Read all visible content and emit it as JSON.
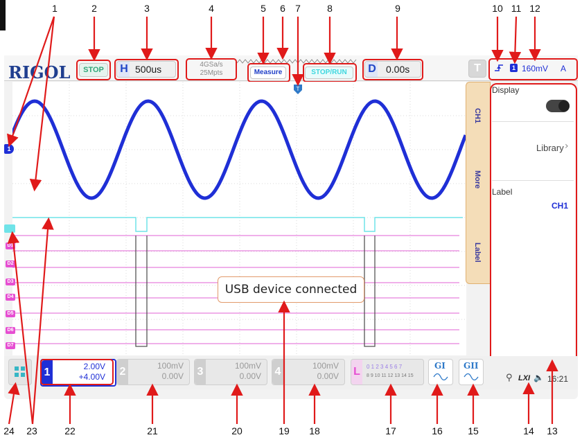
{
  "callouts": [
    "1",
    "2",
    "3",
    "4",
    "5",
    "6",
    "7",
    "8",
    "9",
    "10",
    "11",
    "12",
    "24",
    "23",
    "22",
    "21",
    "20",
    "19",
    "18",
    "17",
    "16",
    "15",
    "14",
    "13"
  ],
  "top": {
    "logo": "RIGOL",
    "run_state": "STOP",
    "h_label": "H",
    "timebase": "500us",
    "sample_rate": "4GSa/s",
    "memory_depth": "25Mpts",
    "measure": "Measure",
    "stop_run": "STOP/RUN",
    "d_label": "D",
    "delay": "0.00s",
    "t_label": "T",
    "trigger_level": "160mV",
    "trigger_mode": "A"
  },
  "side_tabs": [
    "CH1",
    "More",
    "Label"
  ],
  "side_panel": {
    "display_label": "Display",
    "library_label": "Library",
    "label_label": "Label",
    "label_value": "CH1"
  },
  "toast": "USB device connected",
  "digital_labels": [
    "D1",
    "D2",
    "D3",
    "D4",
    "D5",
    "D6",
    "D7"
  ],
  "channels": [
    {
      "num": "1",
      "scale": "2.00V",
      "offset": "+4.00V"
    },
    {
      "num": "2",
      "scale": "100mV",
      "offset": "0.00V"
    },
    {
      "num": "3",
      "scale": "100mV",
      "offset": "0.00V"
    },
    {
      "num": "4",
      "scale": "100mV",
      "offset": "0.00V"
    }
  ],
  "la": {
    "letter": "L",
    "row1": "0 1 2 3 4 5 6 7",
    "row2": "8 9 10 11 12 13 14 15"
  },
  "g1": "GI",
  "g2": "GII",
  "status": {
    "lxi": "LXI",
    "time": "16:21"
  },
  "colors": {
    "ch1": "#1f2fd6",
    "la_teal": "#6fe3e8",
    "la_pink": "#e880de",
    "callout_red": "#e01a1a",
    "brand": "#1f3e8f"
  }
}
